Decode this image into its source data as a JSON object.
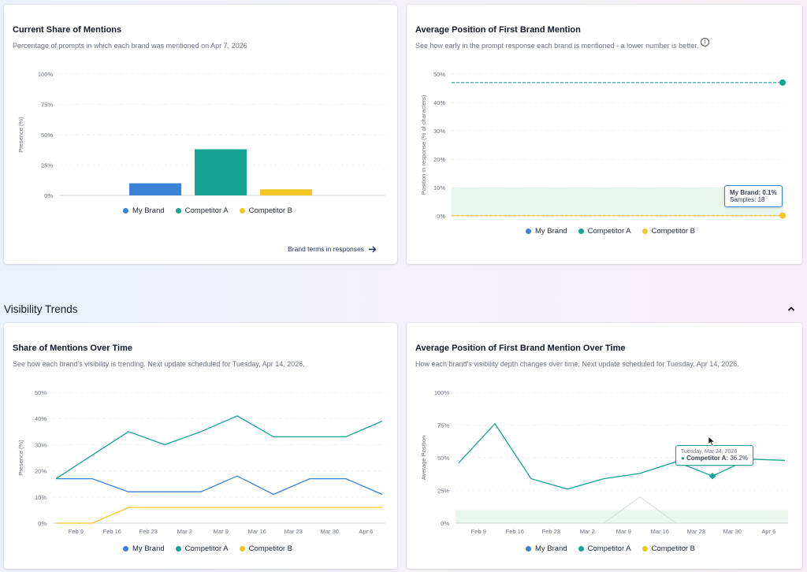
{
  "colors": {
    "my_brand": "#3b82d6",
    "competitor_a": "#16a394",
    "competitor_b": "#f2c523"
  },
  "legend": [
    "My Brand",
    "Competitor A",
    "Competitor B"
  ],
  "card1": {
    "title": "Current Share of Mentions",
    "subtitle": "Percentage of prompts in which each brand was mentioned on Apr 7, 2026",
    "link": "Brand terms in responses",
    "link_icon": "arrow-right-icon"
  },
  "card2": {
    "title": "Average Position of First Brand Mention",
    "subtitle": "See how early in the prompt response each brand is mentioned - a lower number is better.",
    "info_icon": "info-icon",
    "tooltip": {
      "label": "My Brand: 0.1%",
      "samples": "Samples: 18"
    }
  },
  "section": {
    "title": "Visibility Trends",
    "collapse_icon": "chevron-up-icon"
  },
  "card3": {
    "title": "Share of Mentions Over Time",
    "subtitle": "See how each brand's visibility is trending. Next update scheduled for Tuesday, Apr 14, 2026."
  },
  "card4": {
    "title": "Average Position of First Brand Mention Over Time",
    "subtitle": "How each brand's visibility depth changes over time. Next update scheduled for Tuesday, Apr 14, 2026.",
    "tooltip": {
      "date": "Tuesday, Mar 24, 2026",
      "label": "Competitor A:",
      "value": "36.2%"
    }
  },
  "chart_data": [
    {
      "type": "bar",
      "categories": [
        "My Brand",
        "Competitor A",
        "Competitor B"
      ],
      "values": [
        10,
        38,
        5
      ],
      "ylabel": "Presence (%)",
      "yticks": [
        "0%",
        "25%",
        "50%",
        "75%",
        "100%"
      ],
      "ylim": [
        0,
        100
      ]
    },
    {
      "type": "scatter",
      "ylabel": "Position in response (% of characters)",
      "yticks": [
        "0%",
        "10%",
        "20%",
        "30%",
        "40%",
        "50%"
      ],
      "ylim": [
        0,
        50
      ],
      "series": [
        {
          "name": "Competitor A",
          "value": 47
        },
        {
          "name": "Competitor B",
          "value": 0.1
        }
      ],
      "shaded_band": [
        0,
        10
      ]
    },
    {
      "type": "line",
      "ylabel": "Presence (%)",
      "yticks": [
        "0%",
        "10%",
        "20%",
        "30%",
        "40%",
        "50%"
      ],
      "ylim": [
        0,
        50
      ],
      "xticks": [
        "Feb 9",
        "Feb 16",
        "Feb 23",
        "Mar 2",
        "Mar 9",
        "Mar 16",
        "Mar 23",
        "Mar 30",
        "Apr 6"
      ],
      "series": [
        {
          "name": "My Brand",
          "values": [
            17,
            17,
            12,
            12,
            12,
            18,
            11,
            17,
            17,
            11
          ]
        },
        {
          "name": "Competitor A",
          "values": [
            17,
            26,
            35,
            30,
            35,
            41,
            33,
            33,
            33,
            39
          ]
        },
        {
          "name": "Competitor B",
          "values": [
            0,
            0,
            6,
            6,
            6,
            6,
            6,
            6,
            6,
            6
          ]
        }
      ]
    },
    {
      "type": "line",
      "ylabel": "Average Position",
      "yticks": [
        "0%",
        "25%",
        "50%",
        "75%",
        "100%"
      ],
      "ylim": [
        0,
        100
      ],
      "xticks": [
        "Feb 9",
        "Feb 16",
        "Feb 23",
        "Mar 2",
        "Mar 9",
        "Mar 16",
        "Mar 23",
        "Mar 30",
        "Apr 6"
      ],
      "series": [
        {
          "name": "Competitor A",
          "values": [
            46,
            76,
            34,
            26,
            34,
            38,
            47,
            36,
            49,
            48
          ]
        },
        {
          "name": "My Brand",
          "values": [
            null,
            null,
            null,
            null,
            0,
            20,
            0,
            null,
            null,
            null
          ]
        }
      ],
      "shaded_band": [
        0,
        10
      ]
    }
  ]
}
